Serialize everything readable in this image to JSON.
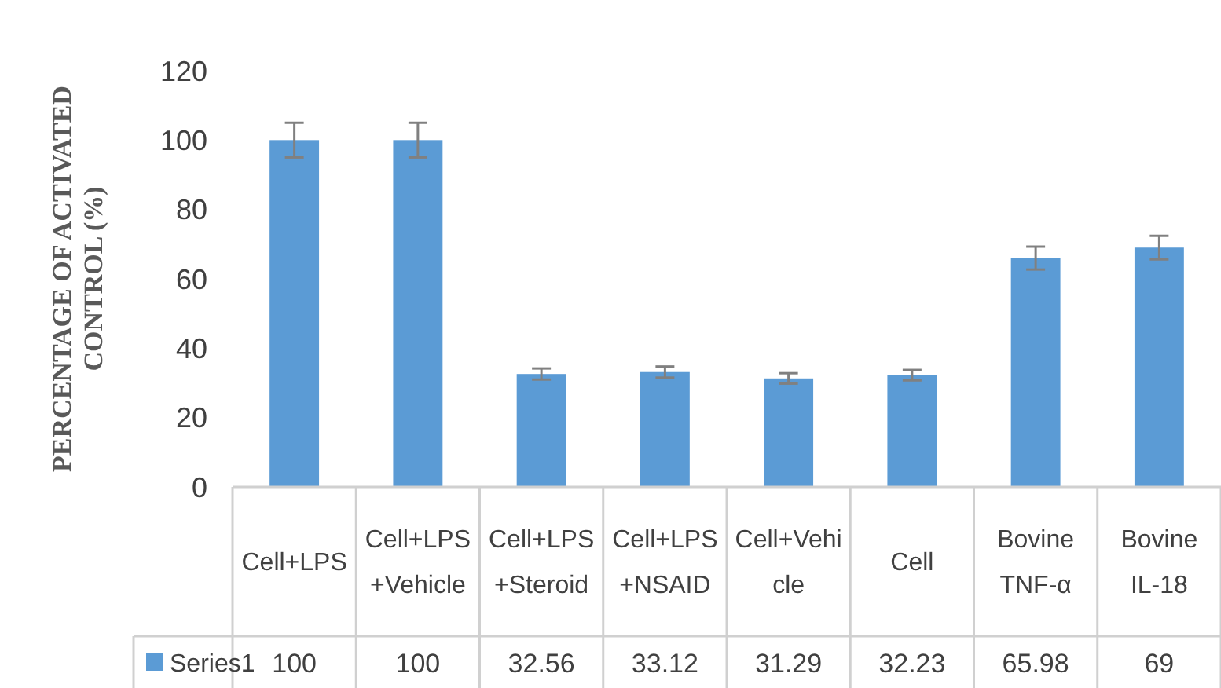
{
  "chart_data": {
    "type": "bar",
    "ylabel": "PERCENTAGE OF ACTIVATED CONTROL (%)",
    "categories": [
      "Cell+LPS",
      "Cell+LPS+Vehicle",
      "Cell+LPS+Steroid",
      "Cell+LPS+NSAID",
      "Cell+Vehicle",
      "Cell",
      "Bovine TNF-α",
      "Bovine IL-18"
    ],
    "series": [
      {
        "name": "Series1",
        "color": "#5b9bd5",
        "values": [
          100,
          100,
          32.56,
          33.12,
          31.29,
          32.23,
          65.98,
          69
        ],
        "errors": [
          5,
          5,
          1.6,
          1.6,
          1.5,
          1.5,
          3.3,
          3.4
        ]
      }
    ],
    "ylim": [
      0,
      120
    ],
    "yticks": [
      0,
      20,
      40,
      60,
      80,
      100,
      120
    ],
    "grid": false,
    "legend": "bottom",
    "data_labels": true
  }
}
